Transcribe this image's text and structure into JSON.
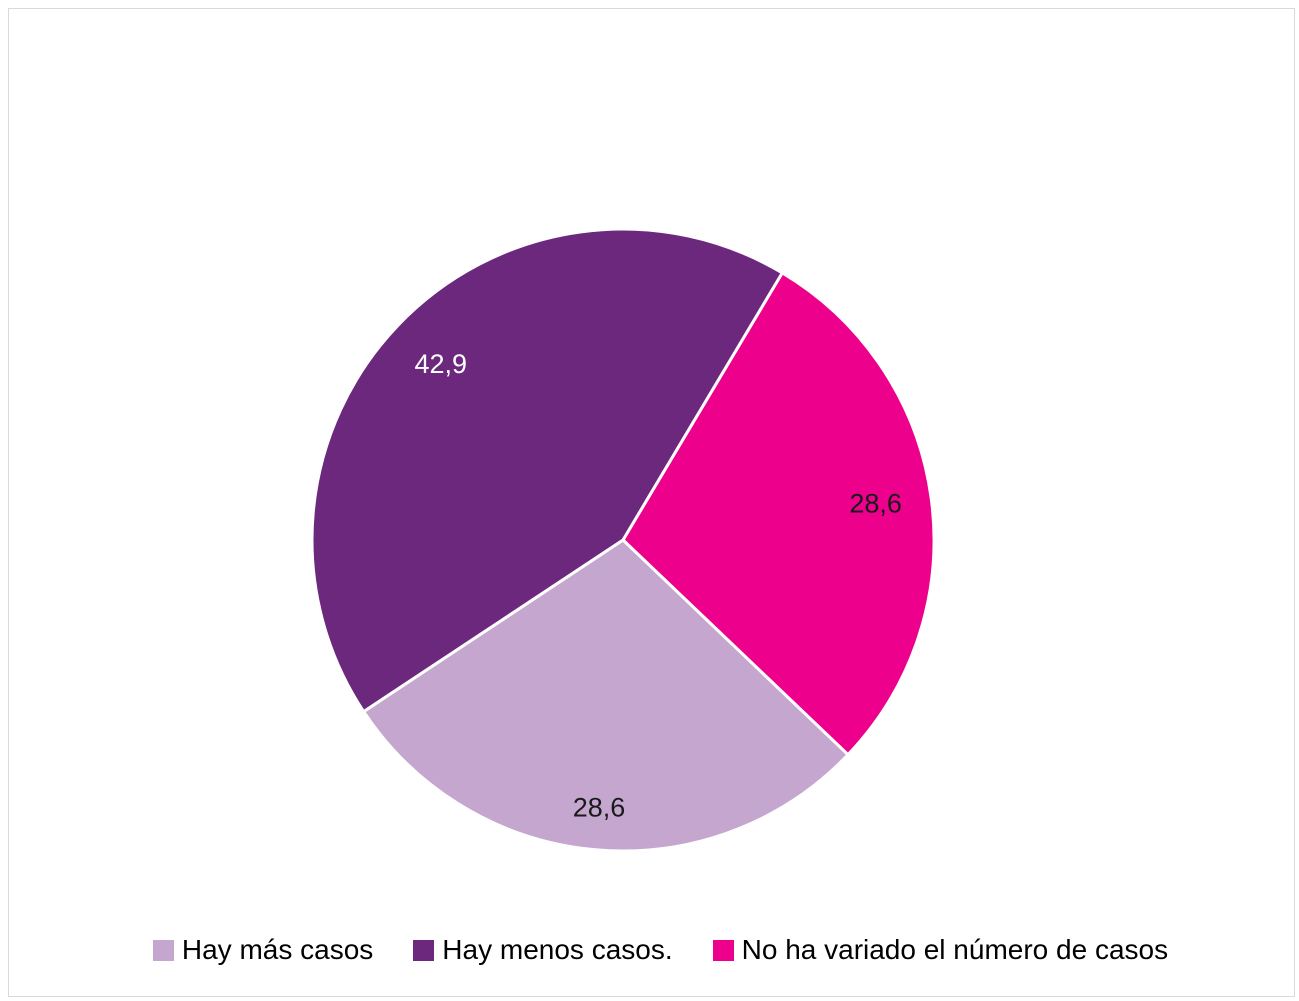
{
  "chart_data": {
    "type": "pie",
    "categories": [
      "Hay más casos",
      "Hay menos casos.",
      "No ha variado el número de casos"
    ],
    "values": [
      28.6,
      42.9,
      28.6
    ],
    "value_labels": [
      "28,6",
      "42,9",
      "28,6"
    ],
    "colors": [
      "#c4a6cf",
      "#6b287d",
      "#ec008c"
    ],
    "label_colors": [
      "#1a1a1a",
      "#ffffff",
      "#1a1a1a"
    ],
    "title": "",
    "legend": "bottom"
  }
}
